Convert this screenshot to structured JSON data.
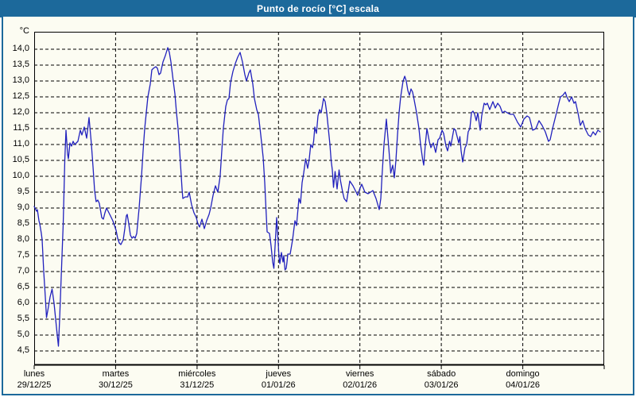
{
  "window": {
    "title": "Punto de rocío [°C] escala"
  },
  "colors": {
    "titlebar_bg": "#1c699b",
    "title_text": "#ffffff",
    "frame_border": "#1c699b",
    "plot_bg": "#fcfcf2",
    "line": "#2121bd",
    "grid": "#000000"
  },
  "chart_data": {
    "type": "line",
    "title": "Punto de rocío [°C] escala",
    "xlabel": "",
    "ylabel": "°C",
    "ylim": [
      4.05,
      14.55
    ],
    "x_range_days": 7,
    "grid": "dashed",
    "legend": "none",
    "y_ticks": [
      14.0,
      13.5,
      13.0,
      12.5,
      12.0,
      11.5,
      11.0,
      10.5,
      10.0,
      9.5,
      9.0,
      8.5,
      8.0,
      7.5,
      7.0,
      6.5,
      6.0,
      5.5,
      5.0,
      4.5
    ],
    "y_tick_labels": [
      "14,0",
      "13,5",
      "13,0",
      "12,5",
      "12,0",
      "11,5",
      "11,0",
      "10,5",
      "10,0",
      "9,5",
      "9,0",
      "8,5",
      "8,0",
      "7,5",
      "7,0",
      "6,5",
      "6,0",
      "5,5",
      "5,0",
      "4,5"
    ],
    "x_days": [
      {
        "day": "lunes",
        "date": "29/12/25"
      },
      {
        "day": "martes",
        "date": "30/12/25"
      },
      {
        "day": "miércoles",
        "date": "31/12/25"
      },
      {
        "day": "jueves",
        "date": "01/01/26"
      },
      {
        "day": "viernes",
        "date": "02/01/26"
      },
      {
        "day": "sábado",
        "date": "03/01/26"
      },
      {
        "day": "domingo",
        "date": "04/01/26"
      }
    ],
    "series": [
      {
        "name": "Punto de rocío",
        "points": [
          [
            0,
            9.05
          ],
          [
            0.02,
            8.95
          ],
          [
            0.029,
            8.9
          ],
          [
            0.039,
            8.95
          ],
          [
            0.059,
            8.6
          ],
          [
            0.068,
            8.5
          ],
          [
            0.088,
            8.2
          ],
          [
            0.098,
            8.0
          ],
          [
            0.117,
            7.0
          ],
          [
            0.137,
            6.2
          ],
          [
            0.151,
            5.55
          ],
          [
            0.176,
            5.9
          ],
          [
            0.195,
            6.2
          ],
          [
            0.22,
            6.45
          ],
          [
            0.244,
            6.0
          ],
          [
            0.264,
            5.5
          ],
          [
            0.283,
            5.0
          ],
          [
            0.298,
            4.65
          ],
          [
            0.312,
            5.5
          ],
          [
            0.327,
            6.5
          ],
          [
            0.342,
            7.5
          ],
          [
            0.356,
            8.5
          ],
          [
            0.366,
            9.5
          ],
          [
            0.376,
            10.5
          ],
          [
            0.391,
            11.45
          ],
          [
            0.41,
            10.7
          ],
          [
            0.42,
            10.55
          ],
          [
            0.439,
            11.05
          ],
          [
            0.459,
            10.95
          ],
          [
            0.478,
            11.1
          ],
          [
            0.498,
            11.0
          ],
          [
            0.517,
            11.05
          ],
          [
            0.537,
            11.1
          ],
          [
            0.566,
            11.45
          ],
          [
            0.586,
            11.3
          ],
          [
            0.615,
            11.55
          ],
          [
            0.644,
            11.2
          ],
          [
            0.674,
            11.85
          ],
          [
            0.703,
            11.0
          ],
          [
            0.722,
            10.3
          ],
          [
            0.742,
            9.55
          ],
          [
            0.761,
            9.2
          ],
          [
            0.781,
            9.25
          ],
          [
            0.8,
            9.15
          ],
          [
            0.83,
            8.7
          ],
          [
            0.849,
            8.65
          ],
          [
            0.869,
            8.85
          ],
          [
            0.888,
            9.0
          ],
          [
            0.908,
            8.9
          ],
          [
            0.937,
            8.75
          ],
          [
            0.966,
            8.6
          ],
          [
            0.986,
            8.45
          ],
          [
            1.006,
            8.3
          ],
          [
            1.025,
            8.05
          ],
          [
            1.045,
            7.9
          ],
          [
            1.064,
            7.85
          ],
          [
            1.093,
            8.0
          ],
          [
            1.113,
            8.35
          ],
          [
            1.132,
            8.75
          ],
          [
            1.142,
            8.8
          ],
          [
            1.162,
            8.5
          ],
          [
            1.181,
            8.15
          ],
          [
            1.201,
            8.05
          ],
          [
            1.22,
            8.1
          ],
          [
            1.24,
            8.05
          ],
          [
            1.259,
            8.2
          ],
          [
            1.289,
            9.0
          ],
          [
            1.318,
            10.0
          ],
          [
            1.338,
            10.8
          ],
          [
            1.357,
            11.5
          ],
          [
            1.377,
            12.0
          ],
          [
            1.396,
            12.5
          ],
          [
            1.425,
            12.9
          ],
          [
            1.445,
            13.35
          ],
          [
            1.464,
            13.4
          ],
          [
            1.494,
            13.45
          ],
          [
            1.513,
            13.4
          ],
          [
            1.533,
            13.2
          ],
          [
            1.552,
            13.25
          ],
          [
            1.582,
            13.6
          ],
          [
            1.611,
            13.8
          ],
          [
            1.64,
            14.05
          ],
          [
            1.66,
            13.9
          ],
          [
            1.679,
            13.6
          ],
          [
            1.708,
            13.0
          ],
          [
            1.728,
            12.6
          ],
          [
            1.748,
            12.0
          ],
          [
            1.767,
            11.5
          ],
          [
            1.787,
            10.8
          ],
          [
            1.806,
            10.0
          ],
          [
            1.816,
            9.6
          ],
          [
            1.826,
            9.3
          ],
          [
            1.855,
            9.35
          ],
          [
            1.884,
            9.35
          ],
          [
            1.904,
            9.5
          ],
          [
            1.933,
            9.1
          ],
          [
            1.962,
            8.85
          ],
          [
            1.991,
            8.7
          ],
          [
            2.011,
            8.5
          ],
          [
            2.031,
            8.4
          ],
          [
            2.06,
            8.65
          ],
          [
            2.089,
            8.35
          ],
          [
            2.118,
            8.6
          ],
          [
            2.148,
            8.8
          ],
          [
            2.167,
            9.0
          ],
          [
            2.197,
            9.4
          ],
          [
            2.226,
            9.7
          ],
          [
            2.255,
            9.5
          ],
          [
            2.284,
            10.0
          ],
          [
            2.304,
            10.8
          ],
          [
            2.323,
            11.5
          ],
          [
            2.353,
            12.2
          ],
          [
            2.372,
            12.4
          ],
          [
            2.392,
            12.45
          ],
          [
            2.411,
            12.95
          ],
          [
            2.441,
            13.3
          ],
          [
            2.47,
            13.55
          ],
          [
            2.499,
            13.75
          ],
          [
            2.529,
            13.9
          ],
          [
            2.558,
            13.6
          ],
          [
            2.587,
            13.2
          ],
          [
            2.607,
            13.0
          ],
          [
            2.636,
            13.25
          ],
          [
            2.655,
            13.35
          ],
          [
            2.685,
            12.9
          ],
          [
            2.704,
            12.45
          ],
          [
            2.733,
            12.1
          ],
          [
            2.753,
            11.95
          ],
          [
            2.782,
            11.3
          ],
          [
            2.812,
            10.6
          ],
          [
            2.831,
            9.8
          ],
          [
            2.846,
            9.0
          ],
          [
            2.861,
            8.25
          ],
          [
            2.89,
            8.2
          ],
          [
            2.909,
            7.8
          ],
          [
            2.929,
            7.3
          ],
          [
            2.944,
            7.1
          ],
          [
            2.958,
            7.8
          ],
          [
            2.978,
            8.7
          ],
          [
            3.007,
            7.45
          ],
          [
            3.017,
            7.25
          ],
          [
            3.036,
            7.6
          ],
          [
            3.056,
            7.3
          ],
          [
            3.066,
            7.5
          ],
          [
            3.08,
            7.05
          ],
          [
            3.095,
            7.1
          ],
          [
            3.105,
            7.3
          ],
          [
            3.114,
            7.55
          ],
          [
            3.144,
            7.55
          ],
          [
            3.173,
            8.0
          ],
          [
            3.202,
            8.6
          ],
          [
            3.222,
            8.45
          ],
          [
            3.251,
            9.3
          ],
          [
            3.271,
            9.15
          ],
          [
            3.29,
            9.8
          ],
          [
            3.31,
            10.1
          ],
          [
            3.334,
            10.55
          ],
          [
            3.358,
            10.25
          ],
          [
            3.378,
            10.55
          ],
          [
            3.397,
            11.0
          ],
          [
            3.417,
            10.9
          ],
          [
            3.432,
            11.1
          ],
          [
            3.446,
            11.55
          ],
          [
            3.466,
            11.35
          ],
          [
            3.485,
            11.9
          ],
          [
            3.505,
            12.1
          ],
          [
            3.524,
            12.0
          ],
          [
            3.554,
            12.45
          ],
          [
            3.573,
            12.35
          ],
          [
            3.593,
            12.0
          ],
          [
            3.612,
            11.5
          ],
          [
            3.632,
            11.0
          ],
          [
            3.646,
            10.5
          ],
          [
            3.661,
            10.2
          ],
          [
            3.676,
            9.65
          ],
          [
            3.695,
            10.15
          ],
          [
            3.72,
            9.6
          ],
          [
            3.744,
            10.2
          ],
          [
            3.759,
            9.9
          ],
          [
            3.788,
            9.5
          ],
          [
            3.807,
            9.3
          ],
          [
            3.837,
            9.2
          ],
          [
            3.876,
            9.85
          ],
          [
            3.915,
            9.7
          ],
          [
            3.954,
            9.5
          ],
          [
            3.973,
            9.4
          ],
          [
            3.998,
            9.6
          ],
          [
            4.022,
            9.75
          ],
          [
            4.061,
            9.5
          ],
          [
            4.1,
            9.45
          ],
          [
            4.13,
            9.5
          ],
          [
            4.159,
            9.55
          ],
          [
            4.198,
            9.3
          ],
          [
            4.237,
            8.95
          ],
          [
            4.257,
            9.3
          ],
          [
            4.271,
            10.0
          ],
          [
            4.296,
            11.0
          ],
          [
            4.325,
            11.8
          ],
          [
            4.354,
            10.9
          ],
          [
            4.379,
            10.1
          ],
          [
            4.403,
            10.35
          ],
          [
            4.423,
            9.95
          ],
          [
            4.442,
            10.5
          ],
          [
            4.462,
            11.3
          ],
          [
            4.481,
            12.0
          ],
          [
            4.501,
            12.5
          ],
          [
            4.53,
            13.0
          ],
          [
            4.55,
            13.15
          ],
          [
            4.569,
            13.0
          ],
          [
            4.589,
            12.7
          ],
          [
            4.608,
            12.55
          ],
          [
            4.628,
            12.75
          ],
          [
            4.647,
            12.65
          ],
          [
            4.667,
            12.4
          ],
          [
            4.696,
            12.0
          ],
          [
            4.725,
            11.5
          ],
          [
            4.745,
            11.0
          ],
          [
            4.769,
            10.55
          ],
          [
            4.784,
            10.35
          ],
          [
            4.803,
            11.0
          ],
          [
            4.823,
            11.5
          ],
          [
            4.852,
            11.1
          ],
          [
            4.872,
            10.9
          ],
          [
            4.901,
            11.05
          ],
          [
            4.93,
            10.75
          ],
          [
            4.96,
            11.15
          ],
          [
            4.979,
            11.2
          ],
          [
            5.009,
            11.45
          ],
          [
            5.028,
            11.35
          ],
          [
            5.057,
            10.95
          ],
          [
            5.077,
            10.8
          ],
          [
            5.101,
            11.1
          ],
          [
            5.116,
            10.95
          ],
          [
            5.155,
            11.5
          ],
          [
            5.174,
            11.45
          ],
          [
            5.213,
            11.05
          ],
          [
            5.228,
            11.25
          ],
          [
            5.243,
            10.8
          ],
          [
            5.262,
            10.45
          ],
          [
            5.291,
            10.9
          ],
          [
            5.311,
            11.0
          ],
          [
            5.33,
            11.4
          ],
          [
            5.35,
            11.5
          ],
          [
            5.37,
            12.0
          ],
          [
            5.389,
            12.05
          ],
          [
            5.409,
            11.95
          ],
          [
            5.428,
            11.75
          ],
          [
            5.448,
            12.0
          ],
          [
            5.477,
            11.45
          ],
          [
            5.496,
            11.9
          ],
          [
            5.526,
            12.3
          ],
          [
            5.545,
            12.25
          ],
          [
            5.565,
            12.3
          ],
          [
            5.594,
            12.1
          ],
          [
            5.633,
            12.35
          ],
          [
            5.662,
            12.15
          ],
          [
            5.692,
            12.3
          ],
          [
            5.721,
            12.2
          ],
          [
            5.75,
            12.0
          ],
          [
            5.779,
            12.05
          ],
          [
            5.809,
            12.0
          ],
          [
            5.848,
            11.95
          ],
          [
            5.887,
            11.95
          ],
          [
            5.936,
            11.7
          ],
          [
            5.975,
            11.55
          ],
          [
            6.014,
            11.8
          ],
          [
            6.053,
            11.9
          ],
          [
            6.082,
            11.85
          ],
          [
            6.121,
            11.45
          ],
          [
            6.16,
            11.5
          ],
          [
            6.199,
            11.75
          ],
          [
            6.238,
            11.6
          ],
          [
            6.277,
            11.4
          ],
          [
            6.316,
            11.1
          ],
          [
            6.336,
            11.15
          ],
          [
            6.365,
            11.5
          ],
          [
            6.395,
            11.8
          ],
          [
            6.414,
            12.0
          ],
          [
            6.443,
            12.3
          ],
          [
            6.463,
            12.5
          ],
          [
            6.492,
            12.55
          ],
          [
            6.522,
            12.65
          ],
          [
            6.541,
            12.5
          ],
          [
            6.57,
            12.35
          ],
          [
            6.6,
            12.5
          ],
          [
            6.629,
            12.3
          ],
          [
            6.648,
            12.35
          ],
          [
            6.678,
            12.0
          ],
          [
            6.707,
            11.6
          ],
          [
            6.736,
            11.75
          ],
          [
            6.766,
            11.5
          ],
          [
            6.805,
            11.3
          ],
          [
            6.834,
            11.25
          ],
          [
            6.863,
            11.4
          ],
          [
            6.893,
            11.3
          ],
          [
            6.922,
            11.45
          ],
          [
            6.951,
            11.4
          ]
        ]
      }
    ]
  }
}
